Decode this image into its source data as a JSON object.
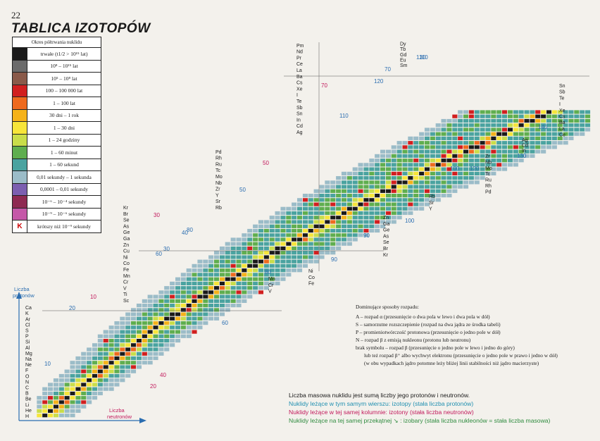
{
  "page_number": "22",
  "title": "TABLICA IZOTOPÓW",
  "legend": {
    "header": "Okres półtrwania nuklidu",
    "items": [
      {
        "label": "trwałe (t1/2 > 10¹⁵ lat)",
        "color": "#1a1a1a"
      },
      {
        "label": "10⁸ – 10¹⁵ lat",
        "color": "#6b6b6b"
      },
      {
        "label": "10⁵ – 10⁸ lat",
        "color": "#8a5a4a"
      },
      {
        "label": "100 – 100 000 lat",
        "color": "#d11f1f"
      },
      {
        "label": "1 – 100 lat",
        "color": "#ee6a1e"
      },
      {
        "label": "30 dni – 1 rok",
        "color": "#f5b21a"
      },
      {
        "label": "1 – 30 dni",
        "color": "#f7e53a"
      },
      {
        "label": "1 – 24 godziny",
        "color": "#c9dd4a"
      },
      {
        "label": "1 – 60 minut",
        "color": "#5fae4f"
      },
      {
        "label": "1 – 60 sekund",
        "color": "#4aa3a0"
      },
      {
        "label": "0,01 sekundy – 1 sekunda",
        "color": "#9bbcc8"
      },
      {
        "label": "0,0001 – 0,01 sekundy",
        "color": "#7c5fb0"
      },
      {
        "label": "10⁻⁶ – 10⁻⁴ sekundy",
        "color": "#8e2a52"
      },
      {
        "label": "10⁻⁹ – 10⁻⁶ sekundy",
        "color": "#c558a8"
      },
      {
        "label": "krótszy niż 10⁻⁹ sekundy",
        "color": "#ffffff",
        "symbol": "K"
      }
    ]
  },
  "axes": {
    "y_label": [
      "Liczba",
      "protonów"
    ],
    "x_label": [
      "Liczba",
      "neutronów"
    ]
  },
  "chart_data": {
    "type": "heatmap",
    "title": "TABLICA IZOTOPÓW",
    "xlabel": "Liczba neutronów",
    "ylabel": "Liczba protonów",
    "element_groups": [
      [
        "H",
        "He",
        "Li",
        "Be",
        "B",
        "C",
        "N",
        "O",
        "F",
        "Ne",
        "Na",
        "Mg",
        "Al",
        "Si",
        "P",
        "S",
        "Cl",
        "Ar",
        "K",
        "Ca"
      ],
      [
        "Sc",
        "Ti",
        "V",
        "Cr",
        "Mn",
        "Fe",
        "Co",
        "Ni",
        "Cu",
        "Zn",
        "Ga",
        "Ge",
        "As",
        "Se",
        "Br",
        "Kr"
      ],
      [
        "Rb",
        "Sr",
        "Y",
        "Zr",
        "Nb",
        "Mo",
        "Tc",
        "Ru",
        "Rh",
        "Pd"
      ],
      [
        "Ag",
        "Cd",
        "In",
        "Sn",
        "Sb",
        "Te",
        "I",
        "Xe",
        "Cs",
        "Ba",
        "La",
        "Ce",
        "Pr",
        "Nd",
        "Pm"
      ],
      [
        "Sm",
        "Eu",
        "Gd",
        "Tb",
        "Dy"
      ],
      [
        "Ni",
        "Co",
        "Fe"
      ],
      [
        "Zr",
        "Nb",
        "Mo",
        "Tc",
        "Ru",
        "Rh",
        "Pd"
      ],
      [
        "Rb",
        "Sr",
        "Y"
      ],
      [
        "Zn",
        "Ga",
        "Ge",
        "As",
        "Se",
        "Br",
        "Kr"
      ],
      [
        "Mn",
        "Cr",
        "V"
      ],
      [
        "Sn",
        "Sb",
        "Te",
        "I",
        "Xe",
        "Cs",
        "Ba",
        "La",
        "Ce"
      ],
      [
        "Ag",
        "Cd",
        "In"
      ]
    ],
    "number_marks": [
      "10",
      "10",
      "20",
      "20",
      "30",
      "30",
      "40",
      "40",
      "50",
      "50",
      "60",
      "60",
      "70",
      "70",
      "80",
      "80",
      "90",
      "90",
      "100",
      "100",
      "110",
      "110",
      "120",
      "120",
      "130",
      "130",
      "140"
    ]
  },
  "decay_notes": {
    "title": "Dominujące sposoby rozpadu:",
    "lines": [
      "A – rozpad α (przesunięcie o dwa pola w lewo i dwa pola w dół)",
      "S – samorzutne rozszczepienie (rozpad na dwa jądra ze środka tabeli)",
      "P – promieniotwórczość protonowa (przesunięcie o jedno pole w dół)",
      "N – rozpad β z emisją nukleonu (protonu lub neutronu)",
      "brak symbolu – rozpad β (przesunięcie o jedno pole w lewo i jedno do góry)",
      "lub też rozpad β⁺ albo wychwyt elektronu (przesunięcie o jedno pole w prawo i jedno w dół)",
      "(w obu wypadkach jądro potomne leży bliżej linii stabilności niż jądro macierzyste)"
    ]
  },
  "footnotes": [
    "Liczba masowa nuklidu jest sumą liczby jego protonów i neutronów.",
    "Nuklidy leżące w tym samym wierszu: izotopy (stała liczba protonów)",
    "Nuklidy leżące w tej samej kolumnie: izotony (stała liczba neutronów)",
    "Nuklidy leżące na tej samej przekątnej ↘ : izobary (stała liczba nukleonów = stała liczba masowa)"
  ]
}
